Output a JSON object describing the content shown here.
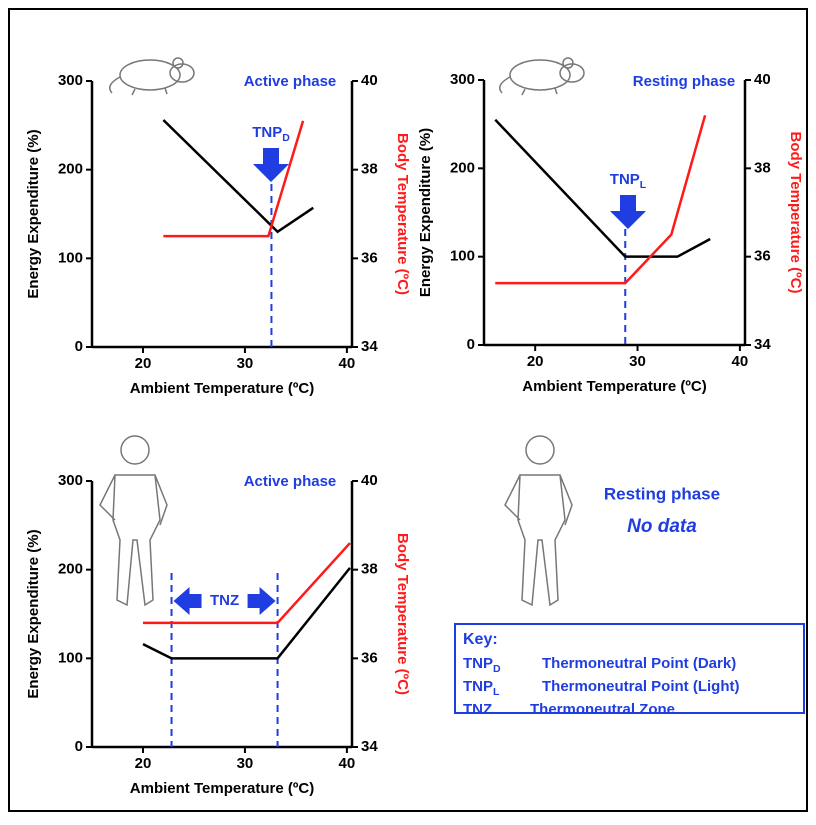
{
  "chart_data": [
    {
      "type": "line",
      "phase": "Active phase",
      "annotation": {
        "text": "TNP",
        "subscript": "D"
      },
      "xlabel": "Ambient Temperature (ºC)",
      "ylabel": "Energy Expenditure (%)",
      "y2label": "Body Temperature (ºC)",
      "xlim": [
        15,
        40.5
      ],
      "xticks": [
        20,
        30,
        40
      ],
      "ylim": [
        0,
        300
      ],
      "yticks": [
        0,
        100,
        200,
        300
      ],
      "y2lim": [
        34,
        40
      ],
      "y2ticks": [
        34,
        36,
        38,
        40
      ],
      "markers": [
        32.6
      ],
      "marker_color": "#1f3de0",
      "series": [
        {
          "color": "#000000",
          "x": [
            22,
            33.2,
            36.7
          ],
          "values": [
            256,
            130,
            157
          ]
        },
        {
          "color": "#ff1a1a",
          "axis": "y2",
          "x": [
            22,
            32.3,
            35.7
          ],
          "values": [
            36.5,
            36.5,
            39.1
          ]
        }
      ]
    },
    {
      "type": "line",
      "phase": "Resting phase",
      "annotation": {
        "text": "TNP",
        "subscript": "L"
      },
      "xlabel": "Ambient Temperature (ºC)",
      "ylabel": "Energy Expenditure (%)",
      "y2label": "Body Temperature (ºC)",
      "xlim": [
        15,
        40.5
      ],
      "xticks": [
        20,
        30,
        40
      ],
      "ylim": [
        0,
        300
      ],
      "yticks": [
        0,
        100,
        200,
        300
      ],
      "y2lim": [
        34,
        40
      ],
      "y2ticks": [
        34,
        36,
        38,
        40
      ],
      "markers": [
        28.8
      ],
      "marker_color": "#1f3de0",
      "series": [
        {
          "color": "#000000",
          "x": [
            16.1,
            28.8,
            33.9,
            37.1
          ],
          "values": [
            255,
            100,
            100,
            120
          ]
        },
        {
          "color": "#ff1a1a",
          "axis": "y2",
          "x": [
            16.1,
            28.8,
            33.3,
            36.6
          ],
          "values": [
            35.4,
            35.4,
            36.5,
            39.2
          ]
        }
      ]
    },
    {
      "type": "line",
      "phase": "Active phase",
      "annotation": {
        "text": "TNZ"
      },
      "xlabel": "Ambient Temperature (ºC)",
      "ylabel": "Energy Expenditure (%)",
      "y2label": "Body Temperature (ºC)",
      "xlim": [
        15,
        40.5
      ],
      "xticks": [
        20,
        30,
        40
      ],
      "ylim": [
        0,
        300
      ],
      "yticks": [
        0,
        100,
        200,
        300
      ],
      "y2lim": [
        34,
        40
      ],
      "y2ticks": [
        34,
        36,
        38,
        40
      ],
      "markers": [
        22.8,
        33.2
      ],
      "marker_color": "#1f3de0",
      "series": [
        {
          "color": "#000000",
          "x": [
            20,
            22.8,
            33.2,
            40.3
          ],
          "values": [
            116,
            100,
            100,
            202
          ]
        },
        {
          "color": "#ff1a1a",
          "axis": "y2",
          "x": [
            20,
            33.2,
            40.3
          ],
          "values": [
            36.8,
            36.8,
            38.6
          ]
        }
      ]
    }
  ],
  "note": {
    "phase": "Resting phase",
    "text": "No data"
  },
  "key": {
    "title": "Key:",
    "items": [
      {
        "abbr": "TNP",
        "subscript": "D",
        "text": "Thermoneutral Point (Dark)"
      },
      {
        "abbr": "TNP",
        "subscript": "L",
        "text": "Thermoneutral Point (Light)"
      },
      {
        "abbr": "TNZ",
        "text": "Thermoneutral Zone"
      }
    ]
  }
}
